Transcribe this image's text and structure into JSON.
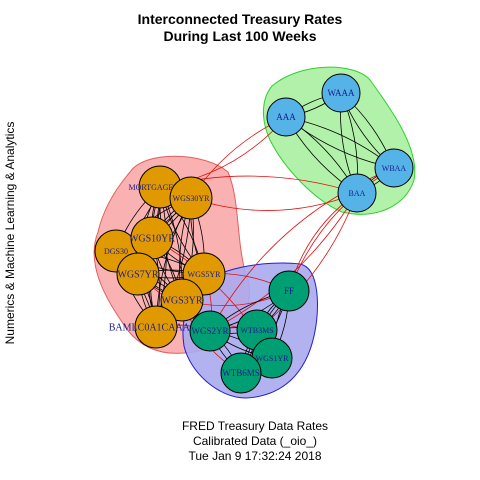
{
  "title": {
    "line1": "Interconnected Treasury Rates",
    "line2": "During Last 100 Weeks"
  },
  "ylabel": "Numerics & Machine Learning & Analytics",
  "caption": {
    "line1": "FRED Treasury Data Rates",
    "line2": "Calibrated Data (_oio_)",
    "line3": "Tue Jan  9 17:32:24 2018"
  },
  "colors": {
    "group_red_fill": "#f8a8a8",
    "group_green_fill": "#a8f0a0",
    "group_blue_fill": "#aaaaf0",
    "node_orange": "#e09a00",
    "node_blue": "#56b3e8",
    "node_green": "#009f73",
    "edge_black": "#000000",
    "edge_red": "#e01010",
    "label_color": "#1a1a8c"
  },
  "groups": [
    {
      "id": "corporate",
      "color": "#f8a8a8",
      "stroke": "#e06060",
      "nodes": [
        "MORTGAGE30US",
        "WGS30YR",
        "DGS30",
        "WGS10YR",
        "WGS7YR",
        "WGS5YR",
        "WGS3YR",
        "BAMLC0A1CAAAEY"
      ]
    },
    {
      "id": "moody",
      "color": "#a8f0a0",
      "stroke": "#30d030",
      "nodes": [
        "AAA",
        "WAAA",
        "WBAA",
        "BAA"
      ]
    },
    {
      "id": "shortterm",
      "color": "#aaaaf0",
      "stroke": "#2020d0",
      "nodes": [
        "FF",
        "WGS2YR",
        "WTB3MS",
        "WGS1YR",
        "WTB6MS"
      ]
    }
  ],
  "nodes": [
    {
      "id": "MORTGAGE30US",
      "label": "MORTGAGE30US",
      "color": "#e09a00"
    },
    {
      "id": "WGS30YR",
      "label": "WGS30YR",
      "color": "#e09a00"
    },
    {
      "id": "DGS30",
      "label": "DGS30",
      "color": "#e09a00"
    },
    {
      "id": "WGS10YR",
      "label": "WGS10YR",
      "color": "#e09a00"
    },
    {
      "id": "WGS7YR",
      "label": "WGS7YR",
      "color": "#e09a00"
    },
    {
      "id": "WGS5YR",
      "label": "WGS5YR",
      "color": "#e09a00"
    },
    {
      "id": "WGS3YR",
      "label": "WGS3YR",
      "color": "#e09a00"
    },
    {
      "id": "BAMLC0A1CAAAEY",
      "label": "BAMLC0A1CAAAEY",
      "color": "#e09a00"
    },
    {
      "id": "AAA",
      "label": "AAA",
      "color": "#56b3e8"
    },
    {
      "id": "WAAA",
      "label": "WAAA",
      "color": "#56b3e8"
    },
    {
      "id": "WBAA",
      "label": "WBAA",
      "color": "#56b3e8"
    },
    {
      "id": "BAA",
      "label": "BAA",
      "color": "#56b3e8"
    },
    {
      "id": "FF",
      "label": "FF",
      "color": "#009f73"
    },
    {
      "id": "WGS2YR",
      "label": "WGS2YR",
      "color": "#009f73"
    },
    {
      "id": "WTB3MS",
      "label": "WTB3MS",
      "color": "#009f73"
    },
    {
      "id": "WGS1YR",
      "label": "WGS1YR",
      "color": "#009f73"
    },
    {
      "id": "WTB6MS",
      "label": "WTB6MS",
      "color": "#009f73"
    }
  ],
  "cross_edges": [
    [
      "MORTGAGE30US",
      "AAA"
    ],
    [
      "WGS30YR",
      "AAA"
    ],
    [
      "WGS30YR",
      "BAA"
    ],
    [
      "MORTGAGE30US",
      "BAA"
    ],
    [
      "WGS3YR",
      "FF"
    ],
    [
      "WGS5YR",
      "FF"
    ],
    [
      "WGS3YR",
      "WGS2YR"
    ],
    [
      "WGS5YR",
      "WGS2YR"
    ],
    [
      "WGS7YR",
      "WTB3MS"
    ],
    [
      "WGS10YR",
      "WGS1YR"
    ],
    [
      "WGS3YR",
      "WTB6MS"
    ],
    [
      "BAMLC0A1CAAAEY",
      "WGS2YR"
    ],
    [
      "BAA",
      "FF"
    ],
    [
      "BAA",
      "WGS2YR"
    ],
    [
      "WBAA",
      "FF"
    ],
    [
      "BAA",
      "WTB3MS"
    ],
    [
      "WBAA",
      "WGS2YR"
    ]
  ]
}
